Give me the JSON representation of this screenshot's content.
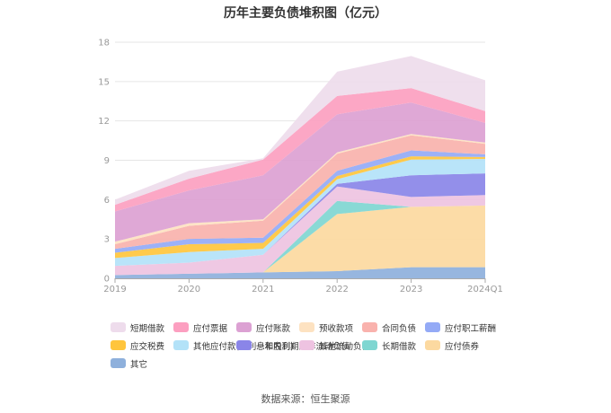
{
  "chart_data": {
    "type": "area",
    "stacked": true,
    "title": "历年主要负债堆积图（亿元）",
    "xlabel": "",
    "ylabel": "",
    "categories": [
      "2019",
      "2020",
      "2021",
      "2022",
      "2023",
      "2024Q1"
    ],
    "ylim": [
      0,
      18
    ],
    "yticks": [
      0,
      3,
      6,
      9,
      12,
      15,
      18
    ],
    "grid": true,
    "legend_position": "bottom",
    "series": [
      {
        "name": "其它",
        "color": "#8eb0dc",
        "values": [
          0.25,
          0.35,
          0.45,
          0.55,
          0.85,
          0.85
        ]
      },
      {
        "name": "应付债券",
        "color": "#fcd9a0",
        "values": [
          0,
          0,
          0,
          4.35,
          4.6,
          4.7
        ]
      },
      {
        "name": "长期借款",
        "color": "#7fd6d1",
        "values": [
          0,
          0,
          0,
          1.0,
          0,
          0
        ]
      },
      {
        "name": "其他流动负债",
        "color": "#eec3e1",
        "values": [
          0.7,
          0.85,
          1.35,
          1.1,
          0.75,
          0.8
        ]
      },
      {
        "name": "一年内到期的非流动负债",
        "color": "#8a85e8",
        "values": [
          0,
          0,
          0,
          0.2,
          1.65,
          1.65
        ]
      },
      {
        "name": "其他应付款(含利息和股利)",
        "color": "#b3e2f8",
        "values": [
          0.6,
          0.8,
          0.45,
          0.35,
          1.2,
          1.1
        ]
      },
      {
        "name": "应交税费",
        "color": "#ffc53d",
        "values": [
          0.4,
          0.6,
          0.45,
          0.25,
          0.25,
          0.15
        ]
      },
      {
        "name": "应付职工薪酬",
        "color": "#94aaf6",
        "values": [
          0.3,
          0.4,
          0.4,
          0.4,
          0.45,
          0.2
        ]
      },
      {
        "name": "合同负债",
        "color": "#f9b2ad",
        "values": [
          0.35,
          1.0,
          1.3,
          1.3,
          1.15,
          0.8
        ]
      },
      {
        "name": "预收款项",
        "color": "#fde2c1",
        "values": [
          0.2,
          0.2,
          0.1,
          0.1,
          0.1,
          0.1
        ]
      },
      {
        "name": "应付账款",
        "color": "#dca1d3",
        "values": [
          2.3,
          2.5,
          3.35,
          2.9,
          2.4,
          1.5
        ]
      },
      {
        "name": "应付票据",
        "color": "#fc9fc0",
        "values": [
          0.5,
          0.9,
          1.2,
          1.4,
          1.1,
          0.9
        ]
      },
      {
        "name": "短期借款",
        "color": "#eedcec",
        "values": [
          0.4,
          0.6,
          0.1,
          1.85,
          2.45,
          2.35
        ]
      }
    ]
  },
  "legend_order": [
    "短期借款",
    "应付票据",
    "应付账款",
    "预收款项",
    "合同负债",
    "应付职工薪酬",
    "应交税费",
    "其他应付款(含利息和股利)",
    "一年内到期的非流动负债",
    "其他流动负债",
    "长期借款",
    "应付债券",
    "其它"
  ],
  "source": "数据来源：恒生聚源"
}
